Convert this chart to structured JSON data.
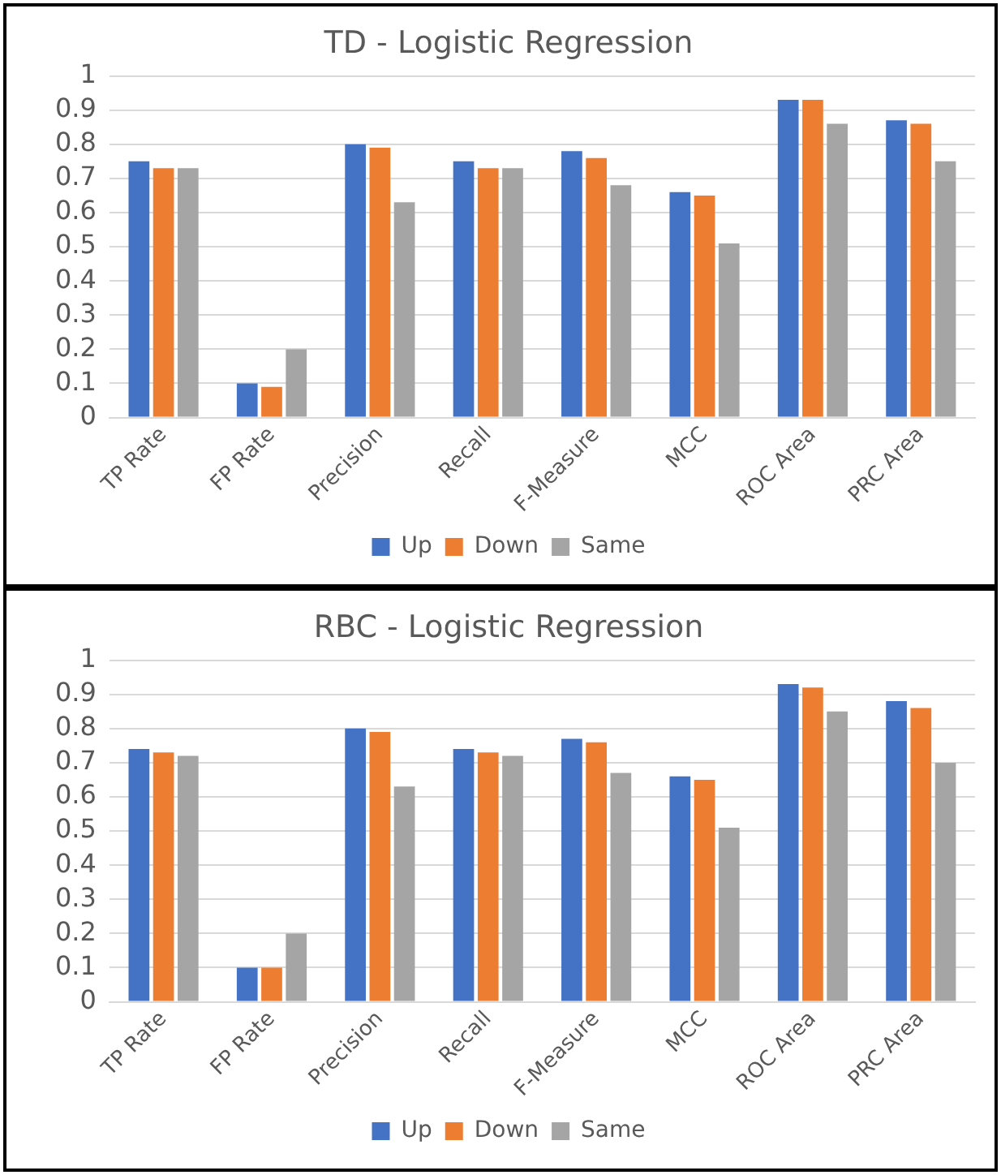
{
  "chart_data": [
    {
      "type": "bar",
      "title": "TD - Logistic Regression",
      "categories": [
        "TP Rate",
        "FP Rate",
        "Precision",
        "Recall",
        "F-Measure",
        "MCC",
        "ROC Area",
        "PRC Area"
      ],
      "series": [
        {
          "name": "Up",
          "color": "#4472c4",
          "values": [
            0.75,
            0.1,
            0.8,
            0.75,
            0.78,
            0.66,
            0.93,
            0.87
          ]
        },
        {
          "name": "Down",
          "color": "#ed7d31",
          "values": [
            0.73,
            0.09,
            0.79,
            0.73,
            0.76,
            0.65,
            0.93,
            0.86
          ]
        },
        {
          "name": "Same",
          "color": "#a5a5a5",
          "values": [
            0.73,
            0.2,
            0.63,
            0.73,
            0.68,
            0.51,
            0.86,
            0.75
          ]
        }
      ],
      "ylim": [
        0,
        1
      ],
      "yticks": [
        0,
        0.1,
        0.2,
        0.3,
        0.4,
        0.5,
        0.6,
        0.7,
        0.8,
        0.9,
        1
      ],
      "grid": "y",
      "legend": "bottom"
    },
    {
      "type": "bar",
      "title": "RBC - Logistic Regression",
      "categories": [
        "TP Rate",
        "FP Rate",
        "Precision",
        "Recall",
        "F-Measure",
        "MCC",
        "ROC Area",
        "PRC Area"
      ],
      "series": [
        {
          "name": "Up",
          "color": "#4472c4",
          "values": [
            0.74,
            0.1,
            0.8,
            0.74,
            0.77,
            0.66,
            0.93,
            0.88
          ]
        },
        {
          "name": "Down",
          "color": "#ed7d31",
          "values": [
            0.73,
            0.1,
            0.79,
            0.73,
            0.76,
            0.65,
            0.92,
            0.86
          ]
        },
        {
          "name": "Same",
          "color": "#a5a5a5",
          "values": [
            0.72,
            0.2,
            0.63,
            0.72,
            0.67,
            0.51,
            0.85,
            0.7
          ]
        }
      ],
      "ylim": [
        0,
        1
      ],
      "yticks": [
        0,
        0.1,
        0.2,
        0.3,
        0.4,
        0.5,
        0.6,
        0.7,
        0.8,
        0.9,
        1
      ],
      "grid": "y",
      "legend": "bottom"
    }
  ]
}
